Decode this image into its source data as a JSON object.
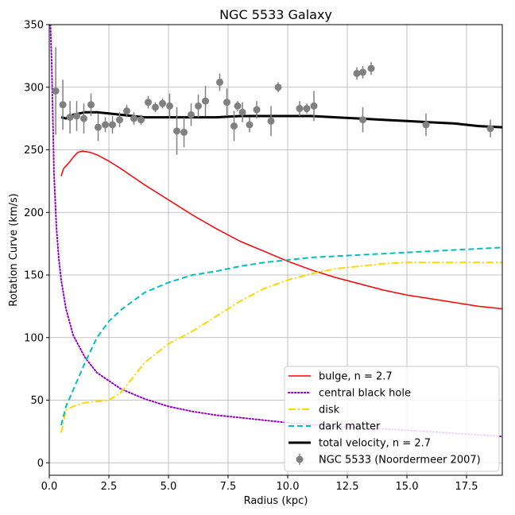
{
  "chart_data": {
    "type": "line",
    "title": "NGC 5533 Galaxy",
    "xlabel": "Radius (kpc)",
    "ylabel": "Rotation Curve (km/s)",
    "xlim": [
      0,
      19
    ],
    "ylim": [
      -10,
      350
    ],
    "x_ticks": [
      0,
      2.5,
      5,
      7.5,
      10,
      12.5,
      15,
      17.5
    ],
    "x_tick_labels": [
      "0.0",
      "2.5",
      "5.0",
      "7.5",
      "10.0",
      "12.5",
      "15.0",
      "17.5"
    ],
    "y_ticks": [
      0,
      50,
      100,
      150,
      200,
      250,
      300,
      350
    ],
    "y_tick_labels": [
      "0",
      "50",
      "100",
      "150",
      "200",
      "250",
      "300",
      "350"
    ],
    "grid": true,
    "legend_position": "bottom-right",
    "colors": {
      "bulge": "#ff0000",
      "black_hole": "#9400d3",
      "disk": "#ffd700",
      "dark_matter": "#00bfbf",
      "total": "#000000",
      "data": "#808080"
    },
    "series": [
      {
        "name": "bulge, n = 2.7",
        "style": "solid",
        "x": [
          0.5,
          0.6,
          0.8,
          1.0,
          1.2,
          1.4,
          1.7,
          2.0,
          2.5,
          3.0,
          4.0,
          5.0,
          6.0,
          7.0,
          8.0,
          9.0,
          10.0,
          11.0,
          12.0,
          13.0,
          14.0,
          15.0,
          16.0,
          17.0,
          18.0,
          19.0
        ],
        "y": [
          229,
          235,
          239,
          244,
          248,
          249,
          248,
          246,
          241,
          235,
          222,
          210,
          198,
          187,
          177,
          169,
          161,
          154,
          148,
          143,
          138,
          134,
          131,
          128,
          125,
          123
        ]
      },
      {
        "name": "central black hole",
        "style": "dotted",
        "x": [
          0.05,
          0.1,
          0.2,
          0.3,
          0.4,
          0.5,
          0.7,
          1.0,
          1.5,
          2.0,
          3.0,
          4.0,
          5.0,
          6.0,
          7.0,
          8.0,
          10.0,
          12.0,
          15.0,
          19.0
        ],
        "y": [
          350,
          320,
          230,
          188,
          163,
          146,
          123,
          102,
          84,
          72,
          59,
          51,
          45,
          41,
          38,
          36,
          32,
          29,
          26,
          21
        ]
      },
      {
        "name": "disk",
        "style": "dashdot",
        "x": [
          0.5,
          0.7,
          1.0,
          1.5,
          2.0,
          2.5,
          3.0,
          4.0,
          5.0,
          6.0,
          7.0,
          8.0,
          9.0,
          10.0,
          11.0,
          12.0,
          13.0,
          14.0,
          15.0,
          16.0,
          17.0,
          19.0
        ],
        "y": [
          24,
          42,
          45,
          48,
          49,
          50,
          56,
          80,
          95,
          105,
          117,
          129,
          139,
          146,
          151,
          155,
          157,
          159,
          160,
          160,
          160,
          160
        ]
      },
      {
        "name": "dark matter",
        "style": "dashed",
        "x": [
          0.5,
          0.7,
          1.0,
          1.5,
          2.0,
          2.5,
          3.0,
          4.0,
          5.0,
          6.0,
          7.0,
          8.0,
          9.0,
          10.0,
          11.0,
          12.0,
          13.0,
          14.0,
          15.0,
          16.0,
          17.0,
          19.0
        ],
        "y": [
          30,
          45,
          58,
          80,
          100,
          113,
          122,
          136,
          144,
          150,
          153,
          157,
          160,
          162,
          164,
          165,
          166,
          167,
          168,
          169,
          170,
          172
        ]
      },
      {
        "name": "total velocity, n = 2.7",
        "style": "solid-thick",
        "x": [
          0.5,
          0.7,
          1.0,
          1.5,
          2.0,
          2.5,
          3.0,
          4.0,
          5.0,
          6.0,
          7.0,
          8.0,
          9.0,
          10.0,
          11.0,
          12.0,
          13.0,
          14.0,
          15.0,
          16.0,
          17.0,
          18.0,
          19.0
        ],
        "y": [
          276,
          275,
          278,
          280,
          280,
          279,
          278,
          276,
          276,
          276,
          276,
          277,
          277,
          277,
          277,
          276,
          275,
          274,
          273,
          272,
          271,
          269,
          268
        ]
      }
    ],
    "scatter": {
      "name": "NGC 5533 (Noordermeer 2007)",
      "points": [
        {
          "x": 0.27,
          "y": 297,
          "err": 35
        },
        {
          "x": 0.57,
          "y": 286,
          "err": 20
        },
        {
          "x": 0.87,
          "y": 276,
          "err": 13
        },
        {
          "x": 1.15,
          "y": 277,
          "err": 12
        },
        {
          "x": 1.45,
          "y": 275,
          "err": 12
        },
        {
          "x": 1.75,
          "y": 286,
          "err": 9
        },
        {
          "x": 2.05,
          "y": 268,
          "err": 11
        },
        {
          "x": 2.35,
          "y": 270,
          "err": 6
        },
        {
          "x": 2.65,
          "y": 270,
          "err": 7
        },
        {
          "x": 2.95,
          "y": 274,
          "err": 6
        },
        {
          "x": 3.25,
          "y": 281,
          "err": 5
        },
        {
          "x": 3.55,
          "y": 275,
          "err": 5
        },
        {
          "x": 3.85,
          "y": 274,
          "err": 4
        },
        {
          "x": 4.15,
          "y": 288,
          "err": 5
        },
        {
          "x": 4.45,
          "y": 284,
          "err": 4
        },
        {
          "x": 4.75,
          "y": 287,
          "err": 4
        },
        {
          "x": 5.05,
          "y": 285,
          "err": 10
        },
        {
          "x": 5.35,
          "y": 265,
          "err": 19
        },
        {
          "x": 5.65,
          "y": 264,
          "err": 12
        },
        {
          "x": 5.95,
          "y": 278,
          "err": 9
        },
        {
          "x": 6.25,
          "y": 285,
          "err": 9
        },
        {
          "x": 6.55,
          "y": 289,
          "err": 12
        },
        {
          "x": 7.15,
          "y": 304,
          "err": 7
        },
        {
          "x": 7.45,
          "y": 288,
          "err": 11
        },
        {
          "x": 7.75,
          "y": 269,
          "err": 12
        },
        {
          "x": 7.9,
          "y": 285,
          "err": 4
        },
        {
          "x": 8.1,
          "y": 280,
          "err": 8
        },
        {
          "x": 8.4,
          "y": 270,
          "err": 6
        },
        {
          "x": 8.7,
          "y": 282,
          "err": 7
        },
        {
          "x": 9.3,
          "y": 273,
          "err": 12
        },
        {
          "x": 9.6,
          "y": 300,
          "err": 4
        },
        {
          "x": 10.5,
          "y": 283,
          "err": 6
        },
        {
          "x": 10.8,
          "y": 283,
          "err": 4
        },
        {
          "x": 11.1,
          "y": 285,
          "err": 12
        },
        {
          "x": 12.9,
          "y": 311,
          "err": 5
        },
        {
          "x": 13.15,
          "y": 312,
          "err": 5
        },
        {
          "x": 13.15,
          "y": 274,
          "err": 10
        },
        {
          "x": 13.5,
          "y": 315,
          "err": 5
        },
        {
          "x": 15.8,
          "y": 270,
          "err": 9
        },
        {
          "x": 18.5,
          "y": 267,
          "err": 7
        }
      ]
    }
  }
}
